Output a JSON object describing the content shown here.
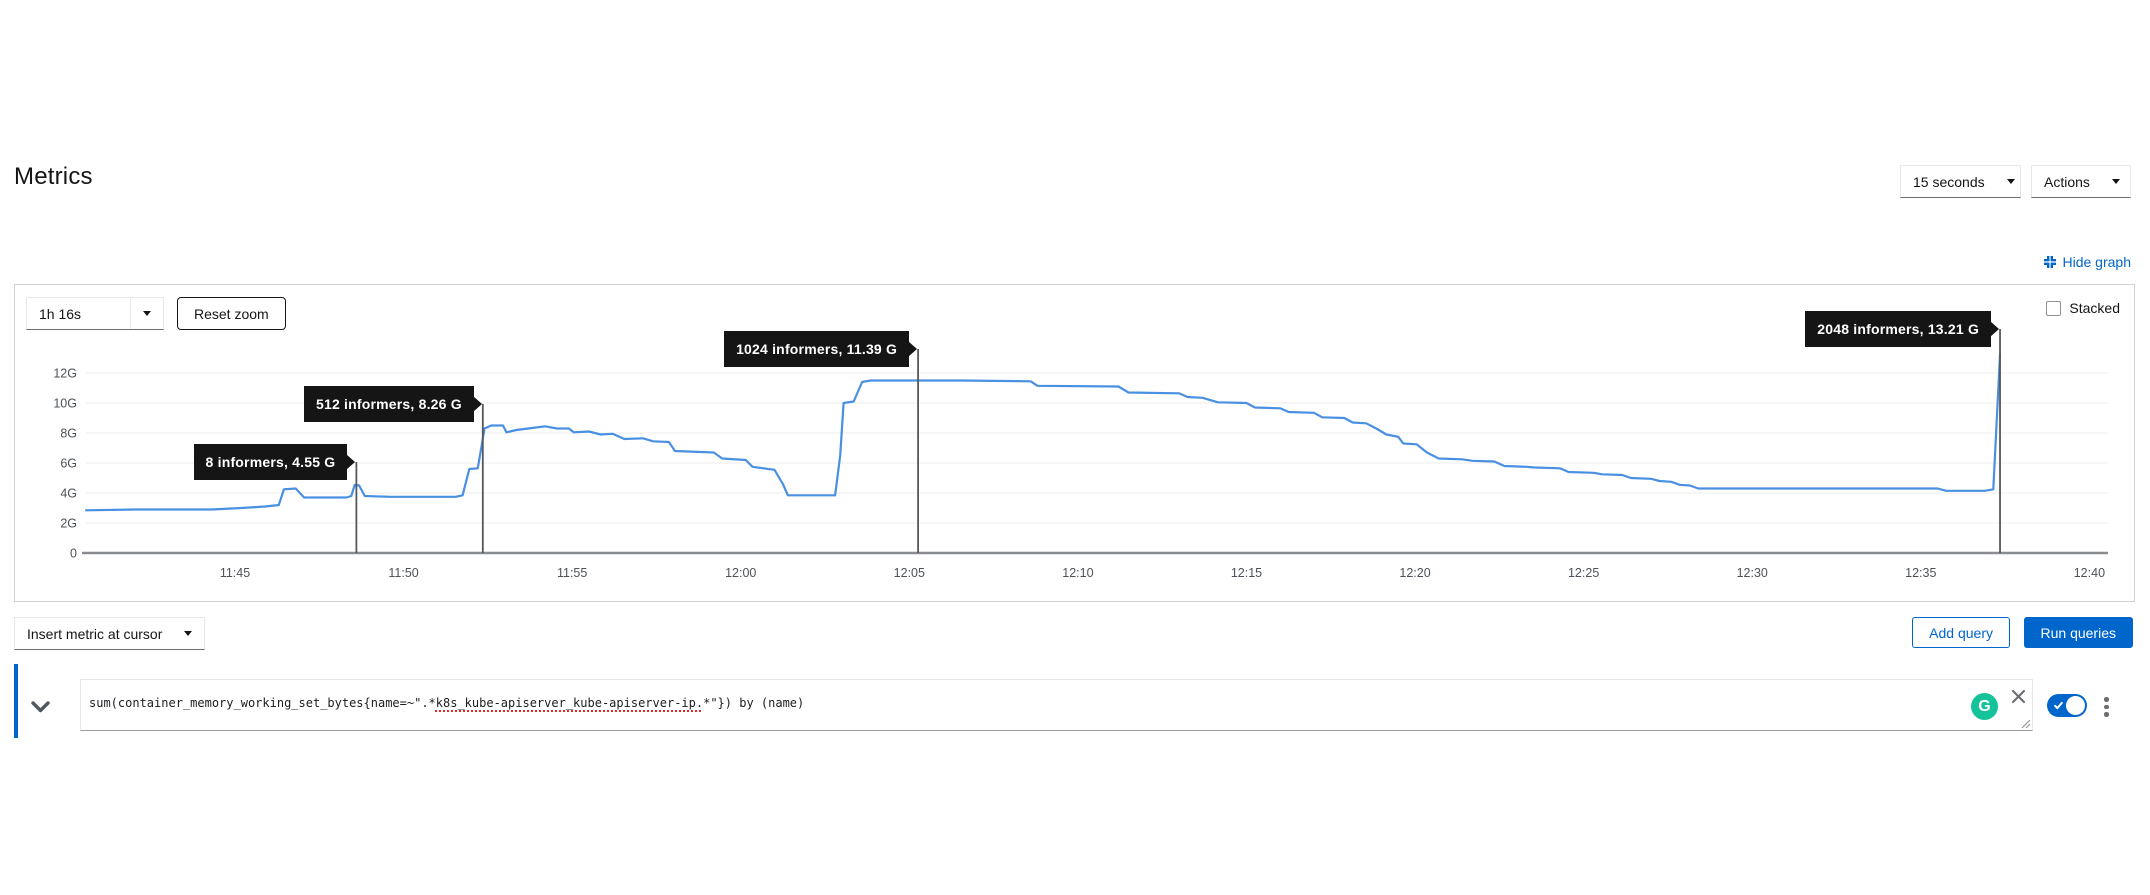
{
  "header": {
    "title": "Metrics",
    "interval_select": {
      "value": "15 seconds"
    },
    "actions_select": {
      "label": "Actions"
    },
    "hide_graph_label": "Hide graph"
  },
  "graph_panel": {
    "span_select": {
      "value": "1h 16s"
    },
    "reset_zoom_label": "Reset zoom",
    "stacked_label": "Stacked",
    "stacked_checked": false
  },
  "chart_data": {
    "type": "line",
    "title": "",
    "unit": "G",
    "x_axis": {
      "tick_minutes": [
        5,
        10,
        15,
        20,
        25,
        30,
        35,
        40,
        45,
        50,
        55,
        60
      ],
      "tick_labels": [
        "11:45",
        "11:50",
        "11:55",
        "12:00",
        "12:05",
        "12:10",
        "12:15",
        "12:20",
        "12:25",
        "12:30",
        "12:35",
        "12:40"
      ]
    },
    "y_axis": {
      "tick_values": [
        0,
        2,
        4,
        6,
        8,
        10,
        12
      ],
      "tick_labels": [
        "0",
        "2G",
        "4G",
        "6G",
        "8G",
        "10G",
        "12G"
      ]
    },
    "ylim": [
      0,
      14
    ],
    "grid": true,
    "series": [
      {
        "name": "sum(container_memory_working_set_bytes{name=~\".*k8s_kube-apiserver_kube-apiserver-ip.*\"}) by (name)",
        "color": "#4a90e2",
        "points": [
          [
            0.58,
            2.85
          ],
          [
            2.0,
            2.9
          ],
          [
            4.3,
            2.9
          ],
          [
            5.2,
            3.0
          ],
          [
            5.9,
            3.1
          ],
          [
            6.3,
            3.2
          ],
          [
            6.45,
            4.25
          ],
          [
            6.8,
            4.3
          ],
          [
            7.05,
            3.7
          ],
          [
            8.3,
            3.7
          ],
          [
            8.45,
            3.8
          ],
          [
            8.55,
            4.55
          ],
          [
            8.68,
            4.5
          ],
          [
            8.85,
            3.8
          ],
          [
            9.6,
            3.75
          ],
          [
            11.55,
            3.75
          ],
          [
            11.75,
            3.85
          ],
          [
            11.95,
            5.6
          ],
          [
            12.2,
            5.65
          ],
          [
            12.4,
            8.3
          ],
          [
            12.6,
            8.5
          ],
          [
            12.95,
            8.5
          ],
          [
            13.05,
            8.05
          ],
          [
            13.35,
            8.2
          ],
          [
            13.7,
            8.3
          ],
          [
            14.2,
            8.45
          ],
          [
            14.55,
            8.3
          ],
          [
            14.9,
            8.3
          ],
          [
            15.05,
            8.05
          ],
          [
            15.5,
            8.1
          ],
          [
            15.85,
            7.9
          ],
          [
            16.2,
            7.95
          ],
          [
            16.55,
            7.6
          ],
          [
            17.1,
            7.65
          ],
          [
            17.4,
            7.45
          ],
          [
            17.87,
            7.4
          ],
          [
            18.05,
            6.8
          ],
          [
            19.2,
            6.7
          ],
          [
            19.45,
            6.3
          ],
          [
            20.15,
            6.2
          ],
          [
            20.35,
            5.75
          ],
          [
            21.0,
            5.55
          ],
          [
            21.25,
            4.6
          ],
          [
            21.4,
            3.85
          ],
          [
            22.8,
            3.85
          ],
          [
            22.95,
            6.5
          ],
          [
            23.05,
            10.0
          ],
          [
            23.35,
            10.1
          ],
          [
            23.6,
            11.4
          ],
          [
            23.85,
            11.5
          ],
          [
            26.5,
            11.5
          ],
          [
            28.6,
            11.45
          ],
          [
            28.8,
            11.15
          ],
          [
            31.2,
            11.1
          ],
          [
            31.5,
            10.7
          ],
          [
            33.0,
            10.65
          ],
          [
            33.25,
            10.4
          ],
          [
            33.7,
            10.35
          ],
          [
            34.15,
            10.05
          ],
          [
            35.0,
            10.0
          ],
          [
            35.25,
            9.7
          ],
          [
            36.0,
            9.65
          ],
          [
            36.25,
            9.4
          ],
          [
            37.0,
            9.35
          ],
          [
            37.25,
            9.05
          ],
          [
            37.9,
            9.0
          ],
          [
            38.15,
            8.7
          ],
          [
            38.55,
            8.65
          ],
          [
            38.85,
            8.3
          ],
          [
            39.15,
            7.9
          ],
          [
            39.5,
            7.75
          ],
          [
            39.65,
            7.3
          ],
          [
            40.05,
            7.25
          ],
          [
            40.35,
            6.7
          ],
          [
            40.7,
            6.3
          ],
          [
            41.4,
            6.25
          ],
          [
            41.7,
            6.15
          ],
          [
            42.35,
            6.1
          ],
          [
            42.65,
            5.8
          ],
          [
            43.3,
            5.75
          ],
          [
            43.55,
            5.7
          ],
          [
            44.3,
            5.65
          ],
          [
            44.55,
            5.4
          ],
          [
            45.3,
            5.35
          ],
          [
            45.55,
            5.25
          ],
          [
            46.15,
            5.2
          ],
          [
            46.4,
            5.0
          ],
          [
            47.0,
            4.95
          ],
          [
            47.25,
            4.8
          ],
          [
            47.6,
            4.75
          ],
          [
            47.85,
            4.55
          ],
          [
            48.15,
            4.5
          ],
          [
            48.4,
            4.3
          ],
          [
            55.5,
            4.3
          ],
          [
            55.75,
            4.15
          ],
          [
            56.9,
            4.15
          ],
          [
            57.15,
            4.25
          ],
          [
            57.35,
            13.21
          ]
        ]
      }
    ],
    "annotations": [
      {
        "label": "8 informers, 4.55 G",
        "t_min": 8.6,
        "value_g": 4.55
      },
      {
        "label": "512 informers, 8.26 G",
        "t_min": 12.35,
        "value_g": 8.26
      },
      {
        "label": "1024 informers, 11.39 G",
        "t_min": 25.26,
        "value_g": 11.39
      },
      {
        "label": "2048 informers, 13.21 G",
        "t_min": 57.35,
        "value_g": 13.21
      }
    ],
    "legend": "none"
  },
  "query_toolbar": {
    "insert_metric_select": {
      "value": "Insert metric at cursor"
    },
    "add_query_label": "Add query",
    "run_queries_label": "Run queries"
  },
  "query_row": {
    "query_pre": "sum(container_memory_working_set_bytes{name=~\".*",
    "query_underlined": "k8s_kube-apiserver_kube-apiserver-ip.",
    "query_post": "*\"}) by (name)",
    "grammarly_letter": "G",
    "toggle_enabled": true
  },
  "colors": {
    "accent_blue": "#0066cc",
    "line_blue": "#4a90e2",
    "annotation_bg": "#151515",
    "grammarly_green": "#15c39a",
    "axis_text": "#4d5258"
  }
}
